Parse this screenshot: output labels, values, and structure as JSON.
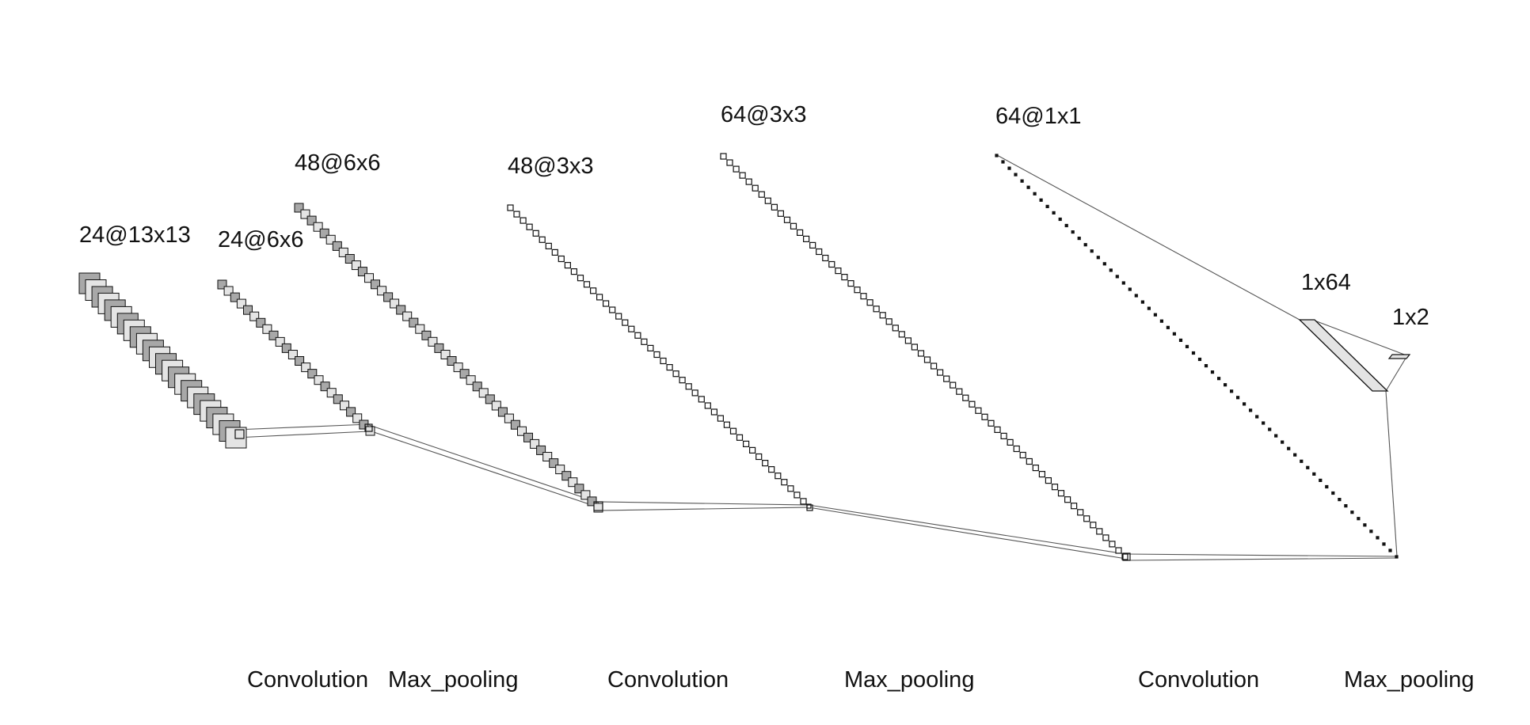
{
  "layers": [
    {
      "label": "24@13x13",
      "count": 24
    },
    {
      "label": "24@6x6",
      "count": 24
    },
    {
      "label": "48@6x6",
      "count": 48
    },
    {
      "label": "48@3x3",
      "count": 48
    },
    {
      "label": "64@3x3",
      "count": 64
    },
    {
      "label": "64@1x1",
      "count": 64
    },
    {
      "label": "1x64"
    },
    {
      "label": "1x2"
    }
  ],
  "operations": [
    "Convolution",
    "Max_pooling",
    "Convolution",
    "Max_pooling",
    "Convolution",
    "Max_pooling"
  ],
  "colors": {
    "fill_dark": "#a8a8a8",
    "fill_light": "#e4e4e4",
    "stroke": "#111111",
    "line": "#555555"
  }
}
